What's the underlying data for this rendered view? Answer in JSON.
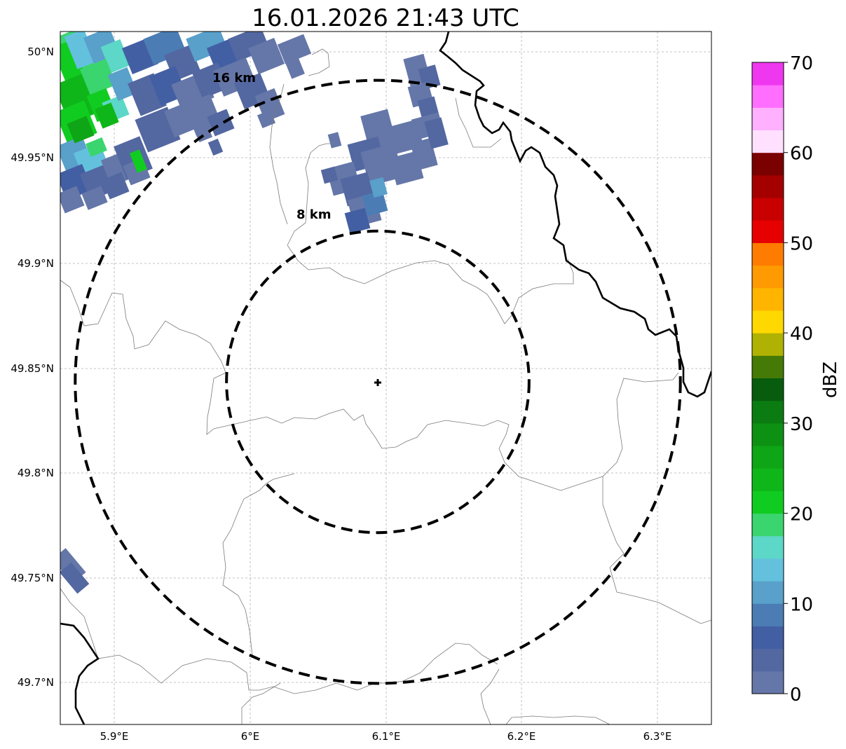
{
  "title": "16.01.2026 21:43 UTC",
  "map": {
    "lon_ticks": [
      "5.9°E",
      "6°E",
      "6.1°E",
      "6.2°E",
      "6.3°E"
    ],
    "lat_ticks": [
      "50°N",
      "49.95°N",
      "49.9°N",
      "49.85°N",
      "49.8°N",
      "49.75°N",
      "49.7°N"
    ],
    "range_rings": [
      {
        "label": "8 km",
        "radius_km": 8
      },
      {
        "label": "16 km",
        "radius_km": 16
      }
    ],
    "radar_site": {
      "lon": 6.096,
      "lat": 49.843
    }
  },
  "colorbar": {
    "label": "dBZ",
    "ticks": [
      "0",
      "10",
      "20",
      "30",
      "40",
      "50",
      "60",
      "70"
    ],
    "colors": [
      "#6577a8",
      "#5367a1",
      "#435fa3",
      "#4b7db4",
      "#59a0cb",
      "#63c1de",
      "#5dd7c7",
      "#3ad56e",
      "#11cc20",
      "#0fb619",
      "#0ea516",
      "#0d9113",
      "#0b7c11",
      "#085c0d",
      "#457a07",
      "#b0b203",
      "#ffd800",
      "#ffb500",
      "#ff9a00",
      "#ff7c00",
      "#e60000",
      "#c80000",
      "#a50000",
      "#7b0000",
      "#ffe0ff",
      "#ffb0ff",
      "#ff6eff",
      "#f037f0"
    ]
  }
}
